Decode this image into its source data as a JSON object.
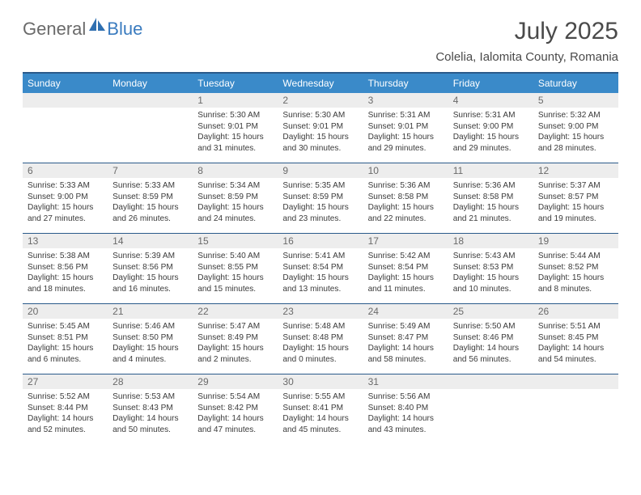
{
  "brand": {
    "part1": "General",
    "part2": "Blue"
  },
  "title": "July 2025",
  "location": "Colelia, Ialomita County, Romania",
  "colors": {
    "header_bg": "#3a8ac9",
    "header_text": "#ffffff",
    "rule": "#2a5a8a",
    "daynum_bg": "#ededed",
    "daynum_text": "#6a6a6a",
    "body_text": "#3a3a3a",
    "brand_gray": "#6a6a6a",
    "brand_blue": "#3a7bbf"
  },
  "day_headers": [
    "Sunday",
    "Monday",
    "Tuesday",
    "Wednesday",
    "Thursday",
    "Friday",
    "Saturday"
  ],
  "weeks": [
    [
      {
        "n": "",
        "sunrise": "",
        "sunset": "",
        "daylight": ""
      },
      {
        "n": "",
        "sunrise": "",
        "sunset": "",
        "daylight": ""
      },
      {
        "n": "1",
        "sunrise": "Sunrise: 5:30 AM",
        "sunset": "Sunset: 9:01 PM",
        "daylight": "Daylight: 15 hours and 31 minutes."
      },
      {
        "n": "2",
        "sunrise": "Sunrise: 5:30 AM",
        "sunset": "Sunset: 9:01 PM",
        "daylight": "Daylight: 15 hours and 30 minutes."
      },
      {
        "n": "3",
        "sunrise": "Sunrise: 5:31 AM",
        "sunset": "Sunset: 9:01 PM",
        "daylight": "Daylight: 15 hours and 29 minutes."
      },
      {
        "n": "4",
        "sunrise": "Sunrise: 5:31 AM",
        "sunset": "Sunset: 9:00 PM",
        "daylight": "Daylight: 15 hours and 29 minutes."
      },
      {
        "n": "5",
        "sunrise": "Sunrise: 5:32 AM",
        "sunset": "Sunset: 9:00 PM",
        "daylight": "Daylight: 15 hours and 28 minutes."
      }
    ],
    [
      {
        "n": "6",
        "sunrise": "Sunrise: 5:33 AM",
        "sunset": "Sunset: 9:00 PM",
        "daylight": "Daylight: 15 hours and 27 minutes."
      },
      {
        "n": "7",
        "sunrise": "Sunrise: 5:33 AM",
        "sunset": "Sunset: 8:59 PM",
        "daylight": "Daylight: 15 hours and 26 minutes."
      },
      {
        "n": "8",
        "sunrise": "Sunrise: 5:34 AM",
        "sunset": "Sunset: 8:59 PM",
        "daylight": "Daylight: 15 hours and 24 minutes."
      },
      {
        "n": "9",
        "sunrise": "Sunrise: 5:35 AM",
        "sunset": "Sunset: 8:59 PM",
        "daylight": "Daylight: 15 hours and 23 minutes."
      },
      {
        "n": "10",
        "sunrise": "Sunrise: 5:36 AM",
        "sunset": "Sunset: 8:58 PM",
        "daylight": "Daylight: 15 hours and 22 minutes."
      },
      {
        "n": "11",
        "sunrise": "Sunrise: 5:36 AM",
        "sunset": "Sunset: 8:58 PM",
        "daylight": "Daylight: 15 hours and 21 minutes."
      },
      {
        "n": "12",
        "sunrise": "Sunrise: 5:37 AM",
        "sunset": "Sunset: 8:57 PM",
        "daylight": "Daylight: 15 hours and 19 minutes."
      }
    ],
    [
      {
        "n": "13",
        "sunrise": "Sunrise: 5:38 AM",
        "sunset": "Sunset: 8:56 PM",
        "daylight": "Daylight: 15 hours and 18 minutes."
      },
      {
        "n": "14",
        "sunrise": "Sunrise: 5:39 AM",
        "sunset": "Sunset: 8:56 PM",
        "daylight": "Daylight: 15 hours and 16 minutes."
      },
      {
        "n": "15",
        "sunrise": "Sunrise: 5:40 AM",
        "sunset": "Sunset: 8:55 PM",
        "daylight": "Daylight: 15 hours and 15 minutes."
      },
      {
        "n": "16",
        "sunrise": "Sunrise: 5:41 AM",
        "sunset": "Sunset: 8:54 PM",
        "daylight": "Daylight: 15 hours and 13 minutes."
      },
      {
        "n": "17",
        "sunrise": "Sunrise: 5:42 AM",
        "sunset": "Sunset: 8:54 PM",
        "daylight": "Daylight: 15 hours and 11 minutes."
      },
      {
        "n": "18",
        "sunrise": "Sunrise: 5:43 AM",
        "sunset": "Sunset: 8:53 PM",
        "daylight": "Daylight: 15 hours and 10 minutes."
      },
      {
        "n": "19",
        "sunrise": "Sunrise: 5:44 AM",
        "sunset": "Sunset: 8:52 PM",
        "daylight": "Daylight: 15 hours and 8 minutes."
      }
    ],
    [
      {
        "n": "20",
        "sunrise": "Sunrise: 5:45 AM",
        "sunset": "Sunset: 8:51 PM",
        "daylight": "Daylight: 15 hours and 6 minutes."
      },
      {
        "n": "21",
        "sunrise": "Sunrise: 5:46 AM",
        "sunset": "Sunset: 8:50 PM",
        "daylight": "Daylight: 15 hours and 4 minutes."
      },
      {
        "n": "22",
        "sunrise": "Sunrise: 5:47 AM",
        "sunset": "Sunset: 8:49 PM",
        "daylight": "Daylight: 15 hours and 2 minutes."
      },
      {
        "n": "23",
        "sunrise": "Sunrise: 5:48 AM",
        "sunset": "Sunset: 8:48 PM",
        "daylight": "Daylight: 15 hours and 0 minutes."
      },
      {
        "n": "24",
        "sunrise": "Sunrise: 5:49 AM",
        "sunset": "Sunset: 8:47 PM",
        "daylight": "Daylight: 14 hours and 58 minutes."
      },
      {
        "n": "25",
        "sunrise": "Sunrise: 5:50 AM",
        "sunset": "Sunset: 8:46 PM",
        "daylight": "Daylight: 14 hours and 56 minutes."
      },
      {
        "n": "26",
        "sunrise": "Sunrise: 5:51 AM",
        "sunset": "Sunset: 8:45 PM",
        "daylight": "Daylight: 14 hours and 54 minutes."
      }
    ],
    [
      {
        "n": "27",
        "sunrise": "Sunrise: 5:52 AM",
        "sunset": "Sunset: 8:44 PM",
        "daylight": "Daylight: 14 hours and 52 minutes."
      },
      {
        "n": "28",
        "sunrise": "Sunrise: 5:53 AM",
        "sunset": "Sunset: 8:43 PM",
        "daylight": "Daylight: 14 hours and 50 minutes."
      },
      {
        "n": "29",
        "sunrise": "Sunrise: 5:54 AM",
        "sunset": "Sunset: 8:42 PM",
        "daylight": "Daylight: 14 hours and 47 minutes."
      },
      {
        "n": "30",
        "sunrise": "Sunrise: 5:55 AM",
        "sunset": "Sunset: 8:41 PM",
        "daylight": "Daylight: 14 hours and 45 minutes."
      },
      {
        "n": "31",
        "sunrise": "Sunrise: 5:56 AM",
        "sunset": "Sunset: 8:40 PM",
        "daylight": "Daylight: 14 hours and 43 minutes."
      },
      {
        "n": "",
        "sunrise": "",
        "sunset": "",
        "daylight": ""
      },
      {
        "n": "",
        "sunrise": "",
        "sunset": "",
        "daylight": ""
      }
    ]
  ]
}
